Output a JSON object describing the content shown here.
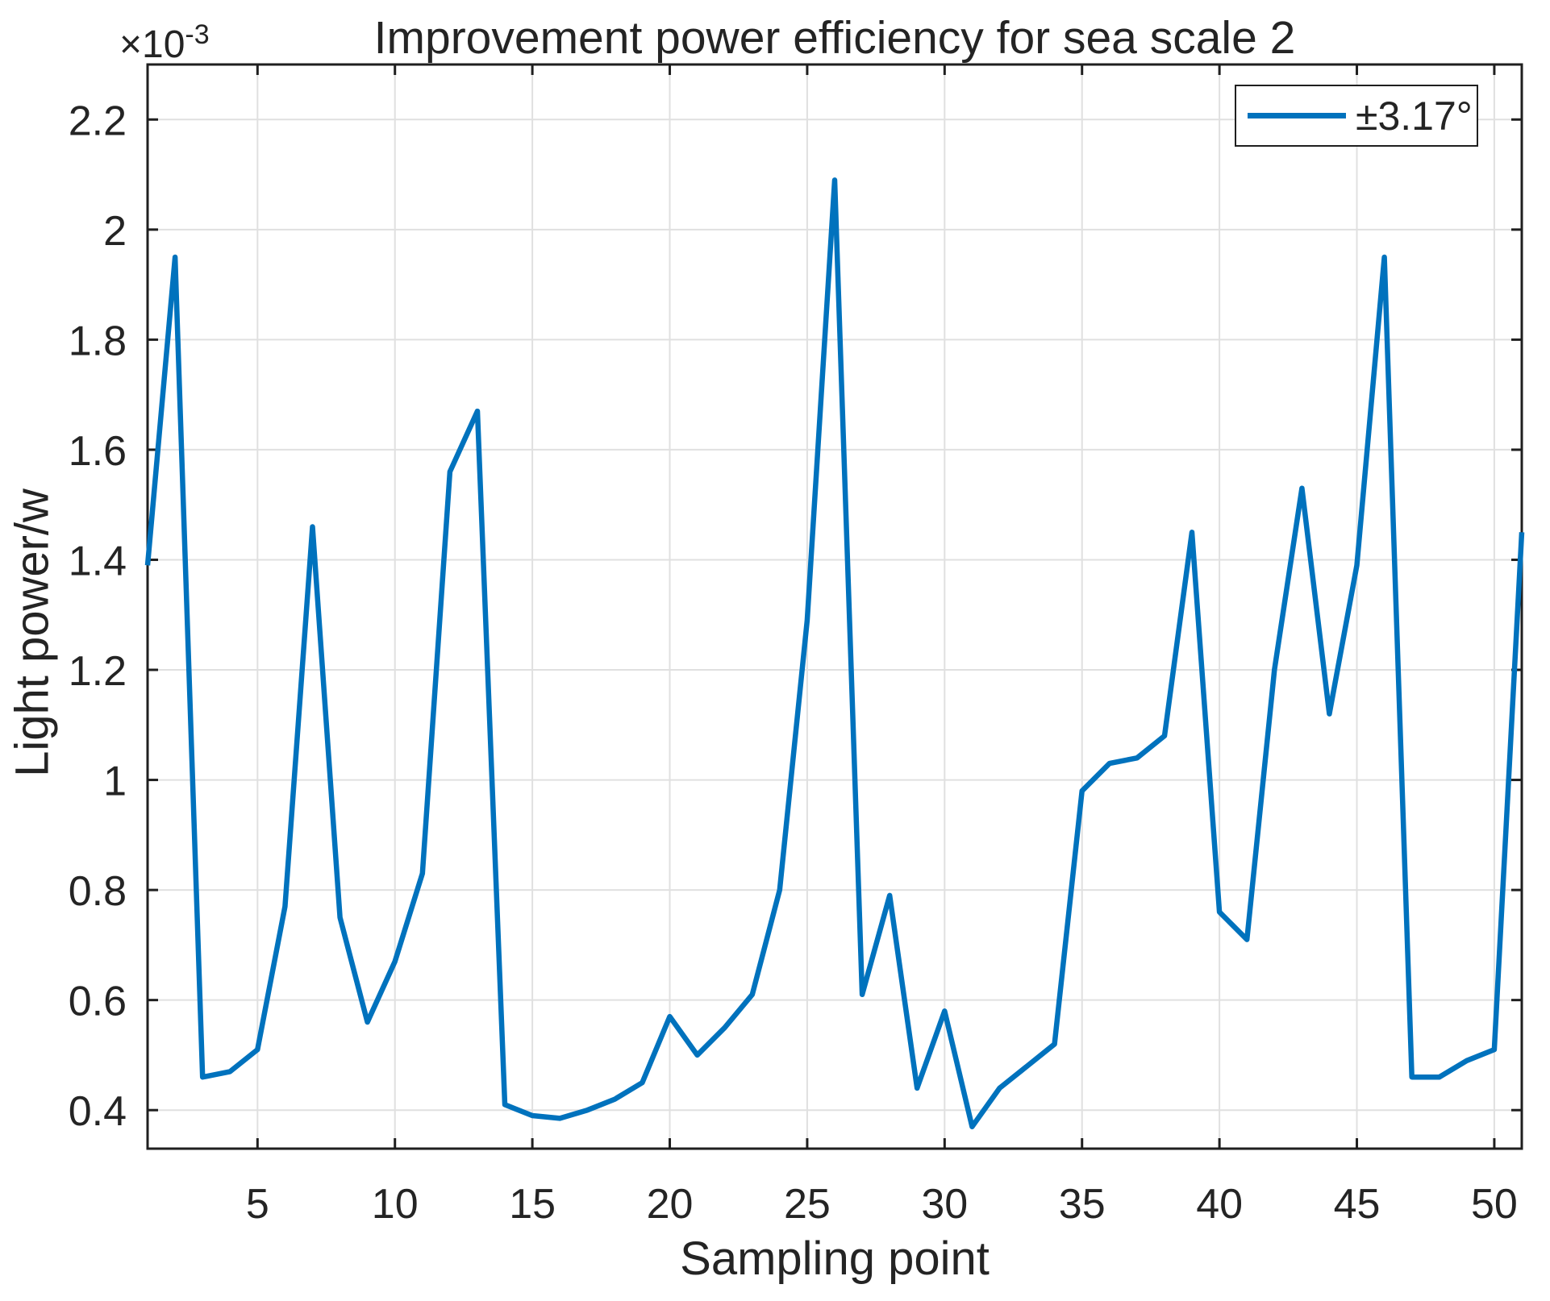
{
  "figure": {
    "title": "Improvement power efficiency for sea scale 2",
    "xlabel": "Sampling point",
    "ylabel": "Light power/w",
    "y_axis_offset_base": "×10",
    "y_axis_offset_exp": "-3",
    "legend_label": "±3.17°",
    "colors": {
      "line": "#0072BD",
      "grid": "#e0e0e0",
      "axis": "#1f1f1f",
      "text": "#242424",
      "background": "#ffffff"
    }
  },
  "chart_data": {
    "type": "line",
    "title": "Improvement power efficiency for sea scale 2",
    "xlabel": "Sampling point",
    "ylabel": "Light power/w",
    "y_unit_scale": "1e-3",
    "grid": true,
    "legend_position": "top-right",
    "xlim": [
      1,
      51
    ],
    "ylim": [
      0.33,
      2.3
    ],
    "xticks": [
      5,
      10,
      15,
      20,
      25,
      30,
      35,
      40,
      45,
      50
    ],
    "xtick_labels": [
      "5",
      "10",
      "15",
      "20",
      "25",
      "30",
      "35",
      "40",
      "45",
      "50"
    ],
    "yticks": [
      0.4,
      0.6,
      0.8,
      1.0,
      1.2,
      1.4,
      1.6,
      1.8,
      2.0,
      2.2
    ],
    "ytick_labels": [
      "0.4",
      "0.6",
      "0.8",
      "1",
      "1.2",
      "1.4",
      "1.6",
      "1.8",
      "2",
      "2.2"
    ],
    "x": [
      1,
      2,
      3,
      4,
      5,
      6,
      7,
      8,
      9,
      10,
      11,
      12,
      13,
      14,
      15,
      16,
      17,
      18,
      19,
      20,
      21,
      22,
      23,
      24,
      25,
      26,
      27,
      28,
      29,
      30,
      31,
      32,
      33,
      34,
      35,
      36,
      37,
      38,
      39,
      40,
      41,
      42,
      43,
      44,
      45,
      46,
      47,
      48,
      49,
      50,
      51
    ],
    "series": [
      {
        "name": "±3.17°",
        "values": [
          1.39,
          1.95,
          0.46,
          0.47,
          0.51,
          0.77,
          1.46,
          0.75,
          0.56,
          0.67,
          0.83,
          1.56,
          1.67,
          0.41,
          0.39,
          0.385,
          0.4,
          0.42,
          0.45,
          0.57,
          0.5,
          0.55,
          0.61,
          0.8,
          1.29,
          2.09,
          0.61,
          0.79,
          0.44,
          0.58,
          0.37,
          0.44,
          0.48,
          0.52,
          0.98,
          1.03,
          1.04,
          1.08,
          1.45,
          0.76,
          0.71,
          1.2,
          1.53,
          1.12,
          1.39,
          1.95,
          0.46,
          0.46,
          0.49,
          0.51,
          1.45
        ]
      }
    ]
  }
}
